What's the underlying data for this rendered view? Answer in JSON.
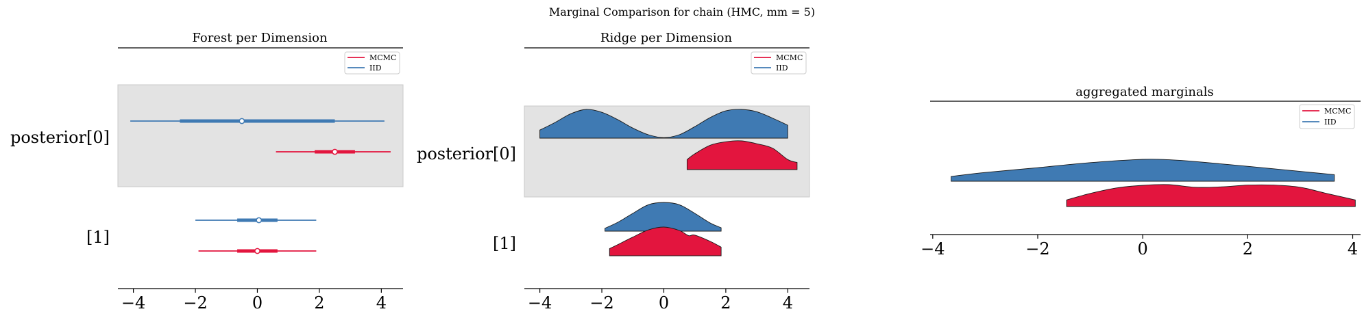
{
  "figure": {
    "suptitle": "Marginal Comparison for chain (HMC, mm = 5)"
  },
  "colors": {
    "mcmc": "#e3153e",
    "mcmc_dark": "#c41236",
    "iid": "#3f7ab3",
    "band": "#e3e3e3",
    "axis": "#000000"
  },
  "chart_data": [
    {
      "type": "forest",
      "title": "Forest per Dimension",
      "xlim": [
        -4.5,
        4.7
      ],
      "xticks": [
        -4,
        -2,
        0,
        2,
        4
      ],
      "xtick_labels": [
        "−4",
        "−2",
        "0",
        "2",
        "4"
      ],
      "row_labels": [
        "posterior[0]",
        "[1]"
      ],
      "legend": {
        "placement": "top-right",
        "entries": [
          "MCMC",
          "IID"
        ]
      },
      "series": [
        {
          "name": "IID",
          "rows": [
            {
              "row": 0,
              "hdi_low": -4.1,
              "hdi_high": 4.1,
              "iqr_low": -2.5,
              "iqr_high": 2.5,
              "point": -0.5
            },
            {
              "row": 1,
              "hdi_low": -2.0,
              "hdi_high": 1.9,
              "iqr_low": -0.65,
              "iqr_high": 0.65,
              "point": 0.05
            }
          ]
        },
        {
          "name": "MCMC",
          "rows": [
            {
              "row": 0,
              "hdi_low": 0.6,
              "hdi_high": 4.3,
              "iqr_low": 1.85,
              "iqr_high": 3.15,
              "point": 2.5
            },
            {
              "row": 1,
              "hdi_low": -1.9,
              "hdi_high": 1.9,
              "iqr_low": -0.65,
              "iqr_high": 0.65,
              "point": 0.0
            }
          ]
        }
      ]
    },
    {
      "type": "ridge",
      "title": "Ridge per Dimension",
      "xlim": [
        -4.5,
        4.7
      ],
      "xticks": [
        -4,
        -2,
        0,
        2,
        4
      ],
      "xtick_labels": [
        "−4",
        "−2",
        "0",
        "2",
        "4"
      ],
      "row_labels": [
        "posterior[0]",
        "[1]"
      ],
      "legend": {
        "placement": "top-right",
        "entries": [
          "MCMC",
          "IID"
        ]
      },
      "ridges": [
        {
          "name": "IID",
          "row": 0,
          "x": [
            -4.0,
            -3.5,
            -3.0,
            -2.5,
            -2.0,
            -1.5,
            -1.0,
            -0.5,
            0.0,
            0.5,
            1.0,
            1.5,
            2.0,
            2.5,
            3.0,
            3.5,
            4.0
          ],
          "y": [
            0.28,
            0.55,
            0.85,
            1.0,
            0.9,
            0.65,
            0.35,
            0.12,
            0.02,
            0.12,
            0.4,
            0.72,
            0.95,
            1.0,
            0.92,
            0.7,
            0.45
          ]
        },
        {
          "name": "MCMC",
          "row": 0,
          "x": [
            0.75,
            1.0,
            1.5,
            2.0,
            2.5,
            3.0,
            3.5,
            4.0,
            4.3
          ],
          "y": [
            0.35,
            0.55,
            0.85,
            0.97,
            1.0,
            0.9,
            0.75,
            0.35,
            0.25
          ]
        },
        {
          "name": "IID",
          "row": 1,
          "x": [
            -1.9,
            -1.5,
            -1.0,
            -0.5,
            0.0,
            0.5,
            1.0,
            1.5,
            1.85
          ],
          "y": [
            0.1,
            0.3,
            0.62,
            0.92,
            1.0,
            0.92,
            0.62,
            0.28,
            0.12
          ]
        },
        {
          "name": "MCMC",
          "row": 1,
          "x": [
            -1.75,
            -1.5,
            -1.0,
            -0.5,
            0.0,
            0.5,
            0.8,
            1.0,
            1.5,
            1.85
          ],
          "y": [
            0.25,
            0.38,
            0.65,
            0.9,
            1.0,
            0.88,
            0.7,
            0.72,
            0.5,
            0.3
          ]
        }
      ]
    },
    {
      "type": "area",
      "title": "aggregated marginals",
      "xlim": [
        -4.05,
        4.15
      ],
      "xticks": [
        -4,
        -2,
        0,
        2,
        4
      ],
      "xtick_labels": [
        "−4",
        "−2",
        "0",
        "2",
        "4"
      ],
      "legend": {
        "placement": "top-right",
        "entries": [
          "MCMC",
          "IID"
        ]
      },
      "ridges": [
        {
          "name": "IID",
          "row": 0,
          "x": [
            -3.65,
            -3.0,
            -2.0,
            -1.0,
            0.0,
            0.5,
            1.0,
            2.0,
            3.0,
            3.65
          ],
          "y": [
            0.22,
            0.4,
            0.62,
            0.85,
            1.0,
            0.98,
            0.9,
            0.68,
            0.45,
            0.3
          ]
        },
        {
          "name": "MCMC",
          "row": 1,
          "x": [
            -1.45,
            -1.0,
            -0.5,
            0.0,
            0.5,
            1.0,
            1.5,
            2.0,
            2.5,
            3.0,
            3.5,
            4.05
          ],
          "y": [
            0.3,
            0.6,
            0.85,
            0.97,
            1.0,
            0.88,
            0.9,
            0.98,
            0.98,
            0.88,
            0.6,
            0.3
          ]
        }
      ]
    }
  ]
}
